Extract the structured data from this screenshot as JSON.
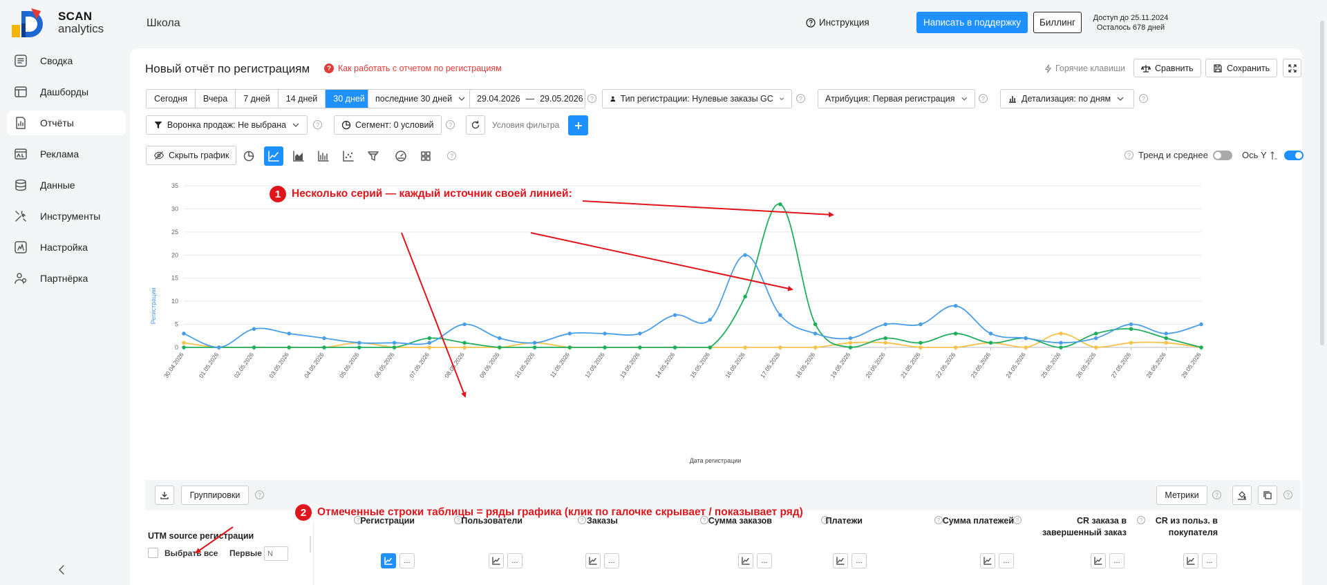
{
  "sidebar": {
    "logo_line1": "SCAN",
    "logo_line2": "analytics",
    "items": [
      {
        "label": "Сводка",
        "icon": "summary-icon"
      },
      {
        "label": "Дашборды",
        "icon": "dashboard-icon"
      },
      {
        "label": "Отчёты",
        "icon": "reports-icon",
        "active": true
      },
      {
        "label": "Реклама",
        "icon": "ads-icon"
      },
      {
        "label": "Данные",
        "icon": "database-icon"
      },
      {
        "label": "Инструменты",
        "icon": "tools-icon"
      },
      {
        "label": "Настройка",
        "icon": "settings-icon"
      },
      {
        "label": "Партнёрка",
        "icon": "partner-icon"
      }
    ]
  },
  "topbar": {
    "school": "Школа",
    "instruction": "Инструкция",
    "support": "Написать в поддержку",
    "billing": "Биллинг",
    "access_line1": "Доступ до 25.11.2024",
    "access_line2": "Осталось 678 дней"
  },
  "report": {
    "title": "Новый отчёт по регистрациям",
    "howto": "Как работать с отчетом по регистрациям",
    "hotkeys": "Горячие клавиши",
    "compare": "Сравнить",
    "save": "Сохранить"
  },
  "filters": {
    "periods": [
      "Сегодня",
      "Вчера",
      "7 дней",
      "14 дней",
      "30 дней"
    ],
    "active_period": "30 дней",
    "last_n": "последние 30 дней",
    "date_from": "29.04.2026",
    "date_sep": "—",
    "date_to": "29.05.2026",
    "reg_type": "Тип регистрации: Нулевые заказы GC",
    "attribution": "Атрибуция: Первая регистрация",
    "detail": "Детализация:  по дням",
    "funnel": "Воронка продаж: Не выбрана",
    "segment": "Сегмент: 0 условий",
    "filter_placeholder": "Условия фильтра"
  },
  "chart_toolbar": {
    "hide_chart": "Скрыть график",
    "trend": "Тренд и среднее",
    "trend_on": false,
    "axis_y": "Ось Y",
    "axis_y_on": true
  },
  "chart_data": {
    "type": "line",
    "xlabel": "Дата регистрации",
    "ylabel": "Регистрации",
    "ylim": [
      0,
      35
    ],
    "yticks": [
      0,
      5,
      10,
      15,
      20,
      25,
      30,
      35
    ],
    "grid": true,
    "categories": [
      "30.04.2026",
      "01.05.2026",
      "02.05.2026",
      "03.05.2026",
      "04.05.2026",
      "05.05.2026",
      "06.05.2026",
      "07.05.2026",
      "08.05.2026",
      "09.05.2026",
      "10.05.2026",
      "11.05.2026",
      "12.05.2026",
      "13.05.2026",
      "14.05.2026",
      "15.05.2026",
      "16.05.2026",
      "17.05.2026",
      "18.05.2026",
      "19.05.2026",
      "20.05.2026",
      "21.05.2026",
      "22.05.2026",
      "23.05.2026",
      "24.05.2026",
      "25.05.2026",
      "26.05.2026",
      "27.05.2026",
      "28.05.2026",
      "29.05.2026"
    ],
    "series": [
      {
        "color": "#4a9ee8",
        "values": [
          3,
          0,
          4,
          3,
          2,
          1,
          1,
          1,
          5,
          2,
          1,
          3,
          3,
          3,
          7,
          6,
          20,
          7,
          3,
          2,
          5,
          5,
          9,
          3,
          2,
          1,
          2,
          5,
          3,
          5
        ]
      },
      {
        "color": "#1fae5c",
        "values": [
          0,
          0,
          0,
          0,
          0,
          0,
          0,
          2,
          1,
          0,
          0,
          0,
          0,
          0,
          0,
          0,
          11,
          31,
          5,
          0,
          2,
          1,
          3,
          1,
          2,
          0,
          3,
          4,
          2,
          0
        ]
      },
      {
        "color": "#f6c24a",
        "values": [
          1,
          0,
          0,
          0,
          0,
          1,
          0,
          0,
          0,
          0,
          1,
          0,
          0,
          0,
          0,
          0,
          0,
          0,
          0,
          1,
          1,
          0,
          0,
          1,
          0,
          3,
          0,
          1,
          1,
          0
        ]
      }
    ]
  },
  "annotations": {
    "a1_num": "1",
    "a1_text": "Несколько серий — каждый источник своей линией:",
    "a2_num": "2",
    "a2_text": "Отмеченные строки таблицы = ряды графика (клик по галочке скрывает / показывает ряд)"
  },
  "table": {
    "groupings": "Группировки",
    "metrics": "Метрики",
    "utm_header": "UTM source регистрации",
    "select_all": "Выбрать все",
    "first_label": "Первые",
    "first_placeholder": "N",
    "columns": [
      {
        "line1": "Регистрации",
        "line2": ""
      },
      {
        "line1": "Пользователи",
        "line2": ""
      },
      {
        "line1": "Заказы",
        "line2": ""
      },
      {
        "line1": "Сумма заказов",
        "line2": ""
      },
      {
        "line1": "Платежи",
        "line2": ""
      },
      {
        "line1": "Сумма платежей",
        "line2": ""
      },
      {
        "line1": "CR заказа в",
        "line2": "завершенный заказ"
      },
      {
        "line1": "CR из польз. в",
        "line2": "покупателя"
      }
    ],
    "more_label": "..."
  },
  "colors": {
    "accent": "#1e90ff",
    "annotation": "#e0151b"
  }
}
